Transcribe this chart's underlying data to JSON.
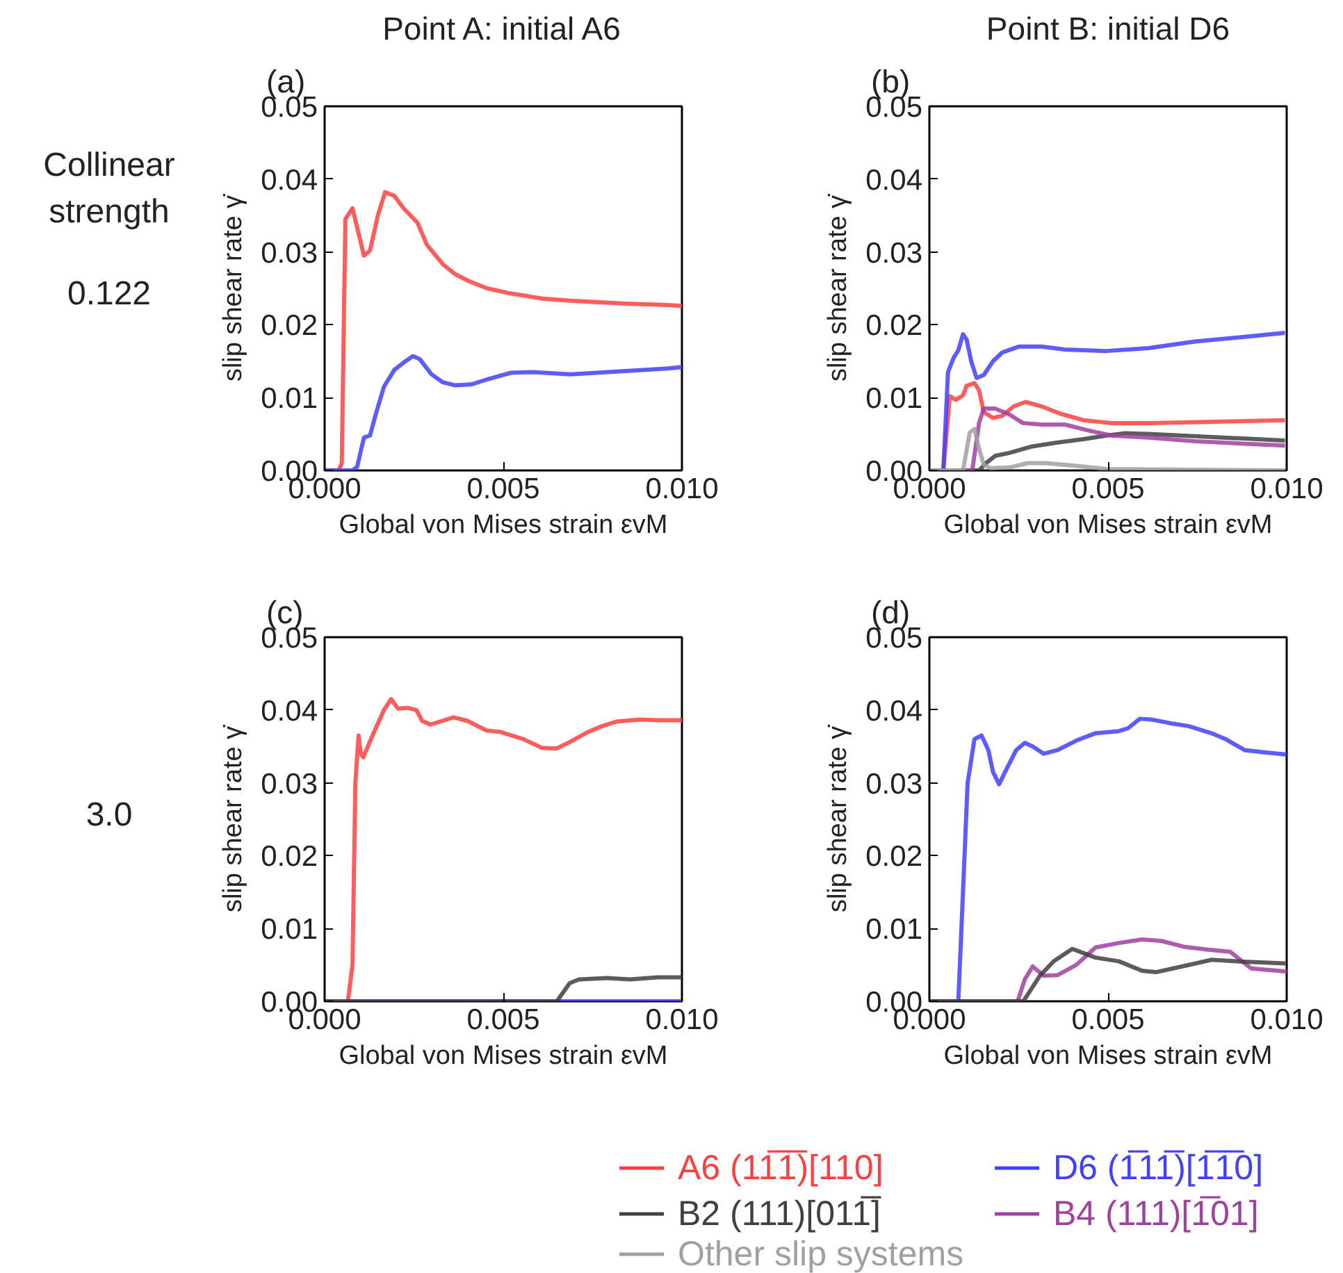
{
  "chart_data": [
    {
      "type": "line",
      "title": "Point A: initial A6",
      "xlabel": "Global von Mises strain εvM",
      "ylabel": "slip shear rate γ̇",
      "xlim": [
        0,
        0.01
      ],
      "ylim": [
        0,
        0.05
      ],
      "xticks": [
        {
          "value": 0,
          "label": "0.000"
        },
        {
          "value": 0.005,
          "label": "0.005"
        },
        {
          "value": 0.01,
          "label": "0.010"
        }
      ],
      "yticks": [
        {
          "value": 0,
          "label": "0.00"
        },
        {
          "value": 0.01,
          "label": "0.01"
        },
        {
          "value": 0.02,
          "label": "0.02"
        },
        {
          "value": 0.03,
          "label": "0.03"
        },
        {
          "value": 0.04,
          "label": "0.04"
        },
        {
          "value": 0.05,
          "label": "0.05"
        }
      ],
      "annotations": [
        "(a)",
        "Collinear strength",
        "0.122"
      ],
      "series": [
        {
          "color": "#ff4040",
          "x": [
            0,
            0.00039,
            0.00048,
            0.00058,
            0.00078,
            0.0011,
            0.00127,
            0.00149,
            0.00169,
            0.00195,
            0.00221,
            0.0026,
            0.00286,
            0.00331,
            0.00364,
            0.00403,
            0.00455,
            0.0052,
            0.0061,
            0.00688,
            0.00844,
            0.00961,
            0.01
          ],
          "values": [
            0,
            0,
            0.001,
            0.0345,
            0.036,
            0.0295,
            0.0302,
            0.035,
            0.0382,
            0.0377,
            0.036,
            0.034,
            0.031,
            0.0283,
            0.027,
            0.026,
            0.025,
            0.0243,
            0.0236,
            0.0233,
            0.0229,
            0.0227,
            0.0226
          ]
        },
        {
          "color": "#4040ff",
          "x": [
            0,
            0.00078,
            0.00091,
            0.0011,
            0.00127,
            0.00143,
            0.00166,
            0.00195,
            0.00221,
            0.00247,
            0.00266,
            0.00299,
            0.00331,
            0.00364,
            0.0041,
            0.00455,
            0.0052,
            0.00584,
            0.00688,
            0.00792,
            0.00961,
            0.01
          ],
          "values": [
            0,
            0,
            0.0005,
            0.0045,
            0.0048,
            0.0077,
            0.0115,
            0.0138,
            0.0148,
            0.0157,
            0.0153,
            0.0132,
            0.0121,
            0.0117,
            0.0118,
            0.0125,
            0.0134,
            0.0135,
            0.0132,
            0.0135,
            0.014,
            0.0142
          ]
        }
      ]
    },
    {
      "type": "line",
      "title": "Point B: initial D6",
      "xlabel": "Global von Mises strain εvM",
      "ylabel": "slip shear rate γ̇",
      "xlim": [
        0,
        0.01
      ],
      "ylim": [
        0,
        0.05
      ],
      "legend": "bottom",
      "xticks": [
        {
          "value": 0,
          "label": "0.000"
        },
        {
          "value": 0.005,
          "label": "0.005"
        },
        {
          "value": 0.01,
          "label": "0.010"
        }
      ],
      "yticks": [
        {
          "value": 0,
          "label": "0.00"
        },
        {
          "value": 0.01,
          "label": "0.01"
        },
        {
          "value": 0.02,
          "label": "0.02"
        },
        {
          "value": 0.03,
          "label": "0.03"
        },
        {
          "value": 0.04,
          "label": "0.04"
        },
        {
          "value": 0.05,
          "label": "0.05"
        }
      ],
      "annotations": [
        "(b)"
      ],
      "series": [
        {
          "name": "A6  (11̅1̅)[110]",
          "color": "#ff4040",
          "x": [
            0,
            0.00039,
            0.00057,
            0.00074,
            0.00094,
            0.00104,
            0.00126,
            0.00139,
            0.00152,
            0.00178,
            0.00204,
            0.00236,
            0.00269,
            0.00314,
            0.00366,
            0.00431,
            0.00509,
            0.00613,
            0.00995
          ],
          "values": [
            0,
            0,
            0.0102,
            0.0097,
            0.0103,
            0.0116,
            0.012,
            0.011,
            0.008,
            0.0072,
            0.0075,
            0.0088,
            0.0094,
            0.0088,
            0.0078,
            0.0069,
            0.0065,
            0.0065,
            0.0069
          ]
        },
        {
          "name": "D6  (1̅11̅)[1̅1̅0]",
          "color": "#4040ff",
          "x": [
            0,
            0.00039,
            0.00052,
            0.00068,
            0.00081,
            0.00094,
            0.00104,
            0.00117,
            0.00132,
            0.00152,
            0.00178,
            0.00204,
            0.0025,
            0.00314,
            0.00379,
            0.00496,
            0.00613,
            0.00743,
            0.00873,
            0.00995
          ],
          "values": [
            0,
            0,
            0.0135,
            0.0155,
            0.0165,
            0.0187,
            0.018,
            0.015,
            0.0127,
            0.0131,
            0.015,
            0.0162,
            0.017,
            0.017,
            0.0166,
            0.0164,
            0.0168,
            0.0177,
            0.0183,
            0.0189
          ]
        },
        {
          "name": "B2  (111)[011̅]",
          "color": "#404040",
          "x": [
            0,
            0.00139,
            0.00158,
            0.00184,
            0.00223,
            0.00288,
            0.00353,
            0.00431,
            0.00496,
            0.00548,
            0.00613,
            0.00743,
            0.00995
          ],
          "values": [
            0,
            0,
            0.001,
            0.002,
            0.0024,
            0.0033,
            0.0038,
            0.0043,
            0.0048,
            0.0051,
            0.005,
            0.0047,
            0.0041
          ]
        },
        {
          "name": "B4  (111)[1̅01]",
          "color": "#a040a0",
          "x": [
            0,
            0.0012,
            0.00139,
            0.00152,
            0.00184,
            0.00223,
            0.00262,
            0.00314,
            0.00379,
            0.00444,
            0.00509,
            0.00613,
            0.00743,
            0.00995
          ],
          "values": [
            0,
            0,
            0.0065,
            0.0085,
            0.0085,
            0.0077,
            0.0065,
            0.0063,
            0.0063,
            0.0055,
            0.0048,
            0.0045,
            0.004,
            0.0034
          ]
        },
        {
          "name": "Other slip systems",
          "color": "#a0a0a0",
          "x": [
            0,
            0.00094,
            0.00113,
            0.00126,
            0.00139,
            0.00152,
            0.00171,
            0.00223,
            0.00275,
            0.00327,
            0.00418,
            0.00496,
            0.00995
          ],
          "values": [
            0,
            0,
            0.0052,
            0.0057,
            0.003,
            0.0008,
            0.0003,
            0.0004,
            0.001,
            0.001,
            0.0006,
            0.0002,
            0
          ]
        }
      ]
    },
    {
      "type": "line",
      "xlabel": "Global von Mises strain εvM",
      "ylabel": "slip shear rate γ̇",
      "xlim": [
        0,
        0.01
      ],
      "ylim": [
        0,
        0.05
      ],
      "xticks": [
        {
          "value": 0,
          "label": "0.000"
        },
        {
          "value": 0.005,
          "label": "0.005"
        },
        {
          "value": 0.01,
          "label": "0.010"
        }
      ],
      "yticks": [
        {
          "value": 0,
          "label": "0.00"
        },
        {
          "value": 0.01,
          "label": "0.01"
        },
        {
          "value": 0.02,
          "label": "0.02"
        },
        {
          "value": 0.03,
          "label": "0.03"
        },
        {
          "value": 0.04,
          "label": "0.04"
        },
        {
          "value": 0.05,
          "label": "0.05"
        }
      ],
      "annotations": [
        "(c)",
        "3.0"
      ],
      "series": [
        {
          "color": "#4040ff",
          "x": [
            0,
            0.01
          ],
          "values": [
            0,
            0
          ]
        },
        {
          "color": "#ff4040",
          "x": [
            0,
            0.00065,
            0.00078,
            0.00086,
            0.00095,
            0.00101,
            0.00108,
            0.00134,
            0.00166,
            0.00186,
            0.00205,
            0.00231,
            0.00257,
            0.00273,
            0.00296,
            0.00361,
            0.004,
            0.00452,
            0.00491,
            0.00556,
            0.00608,
            0.00648,
            0.00686,
            0.00738,
            0.00777,
            0.00816,
            0.00881,
            0.00932,
            0.01
          ],
          "values": [
            0,
            0,
            0.005,
            0.03,
            0.0365,
            0.034,
            0.0335,
            0.0365,
            0.04,
            0.0415,
            0.0402,
            0.0403,
            0.04,
            0.0385,
            0.038,
            0.039,
            0.0385,
            0.0372,
            0.037,
            0.036,
            0.0348,
            0.0347,
            0.0356,
            0.037,
            0.0378,
            0.0384,
            0.0387,
            0.0386,
            0.0386
          ]
        },
        {
          "color": "#404040",
          "x": [
            0,
            0.0065,
            0.00686,
            0.00712,
            0.0079,
            0.00855,
            0.00932,
            0.01
          ],
          "values": [
            0,
            0,
            0.0025,
            0.003,
            0.0032,
            0.003,
            0.0033,
            0.0033
          ]
        }
      ]
    },
    {
      "type": "line",
      "xlabel": "Global von Mises strain εvM",
      "ylabel": "slip shear rate γ̇",
      "xlim": [
        0,
        0.01
      ],
      "ylim": [
        0,
        0.05
      ],
      "xticks": [
        {
          "value": 0,
          "label": "0.000"
        },
        {
          "value": 0.005,
          "label": "0.005"
        },
        {
          "value": 0.01,
          "label": "0.010"
        }
      ],
      "yticks": [
        {
          "value": 0,
          "label": "0.00"
        },
        {
          "value": 0.01,
          "label": "0.01"
        },
        {
          "value": 0.02,
          "label": "0.02"
        },
        {
          "value": 0.03,
          "label": "0.03"
        },
        {
          "value": 0.04,
          "label": "0.04"
        },
        {
          "value": 0.05,
          "label": "0.05"
        }
      ],
      "annotations": [
        "(d)"
      ],
      "series": [
        {
          "color": "#4040ff",
          "x": [
            0,
            0.00081,
            0.00094,
            0.00107,
            0.00126,
            0.00146,
            0.00165,
            0.00178,
            0.00195,
            0.00217,
            0.00243,
            0.00267,
            0.00289,
            0.0032,
            0.00359,
            0.00411,
            0.00464,
            0.0053,
            0.00556,
            0.00589,
            0.00621,
            0.00673,
            0.00725,
            0.0079,
            0.00829,
            0.00882,
            0.00934,
            0.00997,
            0.01
          ],
          "values": [
            0,
            0,
            0.015,
            0.03,
            0.036,
            0.0365,
            0.0345,
            0.0315,
            0.0298,
            0.032,
            0.0345,
            0.0355,
            0.035,
            0.034,
            0.0345,
            0.0358,
            0.0368,
            0.0371,
            0.0375,
            0.0388,
            0.0387,
            0.0382,
            0.0378,
            0.0368,
            0.036,
            0.0345,
            0.0342,
            0.0339,
            0.0339
          ]
        },
        {
          "color": "#a040a0",
          "x": [
            0,
            0.00247,
            0.00267,
            0.00289,
            0.0032,
            0.00359,
            0.00411,
            0.00465,
            0.0053,
            0.00595,
            0.00648,
            0.00712,
            0.00777,
            0.00842,
            0.00901,
            0.00997,
            0.01
          ],
          "values": [
            0,
            0,
            0.003,
            0.0048,
            0.0035,
            0.0036,
            0.005,
            0.0074,
            0.008,
            0.0085,
            0.0083,
            0.0075,
            0.0071,
            0.0068,
            0.0045,
            0.0041,
            0.0041
          ]
        },
        {
          "color": "#404040",
          "x": [
            0,
            0.00263,
            0.00309,
            0.00348,
            0.004,
            0.00465,
            0.0053,
            0.00595,
            0.00634,
            0.00699,
            0.0079,
            0.00855,
            0.00997
          ],
          "values": [
            0,
            0,
            0.0035,
            0.0055,
            0.0072,
            0.006,
            0.0055,
            0.0042,
            0.004,
            0.0047,
            0.0057,
            0.0055,
            0.0052
          ]
        }
      ]
    }
  ]
}
